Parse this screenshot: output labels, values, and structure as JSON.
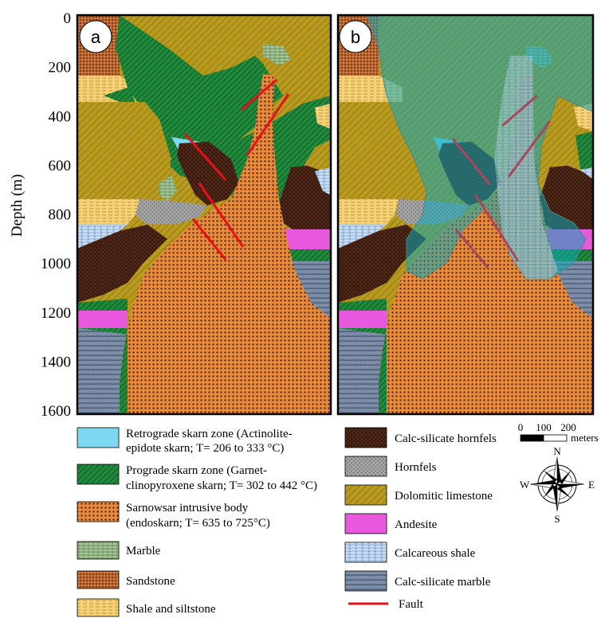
{
  "axis": {
    "title": "Depth (m)",
    "ticks": [
      "0",
      "200",
      "400",
      "600",
      "800",
      "1000",
      "1200",
      "1400",
      "1600"
    ]
  },
  "panels": {
    "a": "a",
    "b": "b"
  },
  "legend": {
    "retrograde": {
      "line1": "Retrograde skarn zone (Actinolite-",
      "line2": "epidote skarn; T= 206 to 333 °C)",
      "color": "#7fd8f2"
    },
    "prograde": {
      "line1": "Prograde skarn zone (Garnet-",
      "line2": "clinopyroxene skarn; T= 302 to 442 °C)",
      "color": "#1f8a3c"
    },
    "intrusive": {
      "line1": "Sarnowsar intrusive body",
      "line2": "(endoskarn; T= 635 to 725°C)",
      "color": "#e88a3a"
    },
    "marble": {
      "label": "Marble",
      "color": "#a9c79a"
    },
    "sandstone": {
      "label": "Sandstone",
      "color": "#b8622c"
    },
    "shale_siltstone": {
      "label": "Shale and siltstone",
      "color": "#f5d27a"
    },
    "calc_silicate_hornfels": {
      "label": "Calc-silicate hornfels",
      "color": "#4a2414"
    },
    "hornfels": {
      "label": "Hornfels",
      "color": "#a6a6a6"
    },
    "dolomitic_limestone": {
      "label": "Dolomitic limestone",
      "color": "#b89a1e"
    },
    "andesite": {
      "label": "Andesite",
      "color": "#f25ee6"
    },
    "calcareous_shale": {
      "label": "Calcareous shale",
      "color": "#a9c8e8"
    },
    "calc_silicate_marble": {
      "label": "Calc-silicate marble",
      "color": "#7d8ea8"
    },
    "fault": {
      "label": "Fault",
      "color": "#e8101a"
    }
  },
  "scale_bar": {
    "labels": [
      "0",
      "100",
      "200"
    ],
    "unit": "meters"
  },
  "compass": {
    "N": "N",
    "S": "S",
    "E": "E",
    "W": "W"
  }
}
